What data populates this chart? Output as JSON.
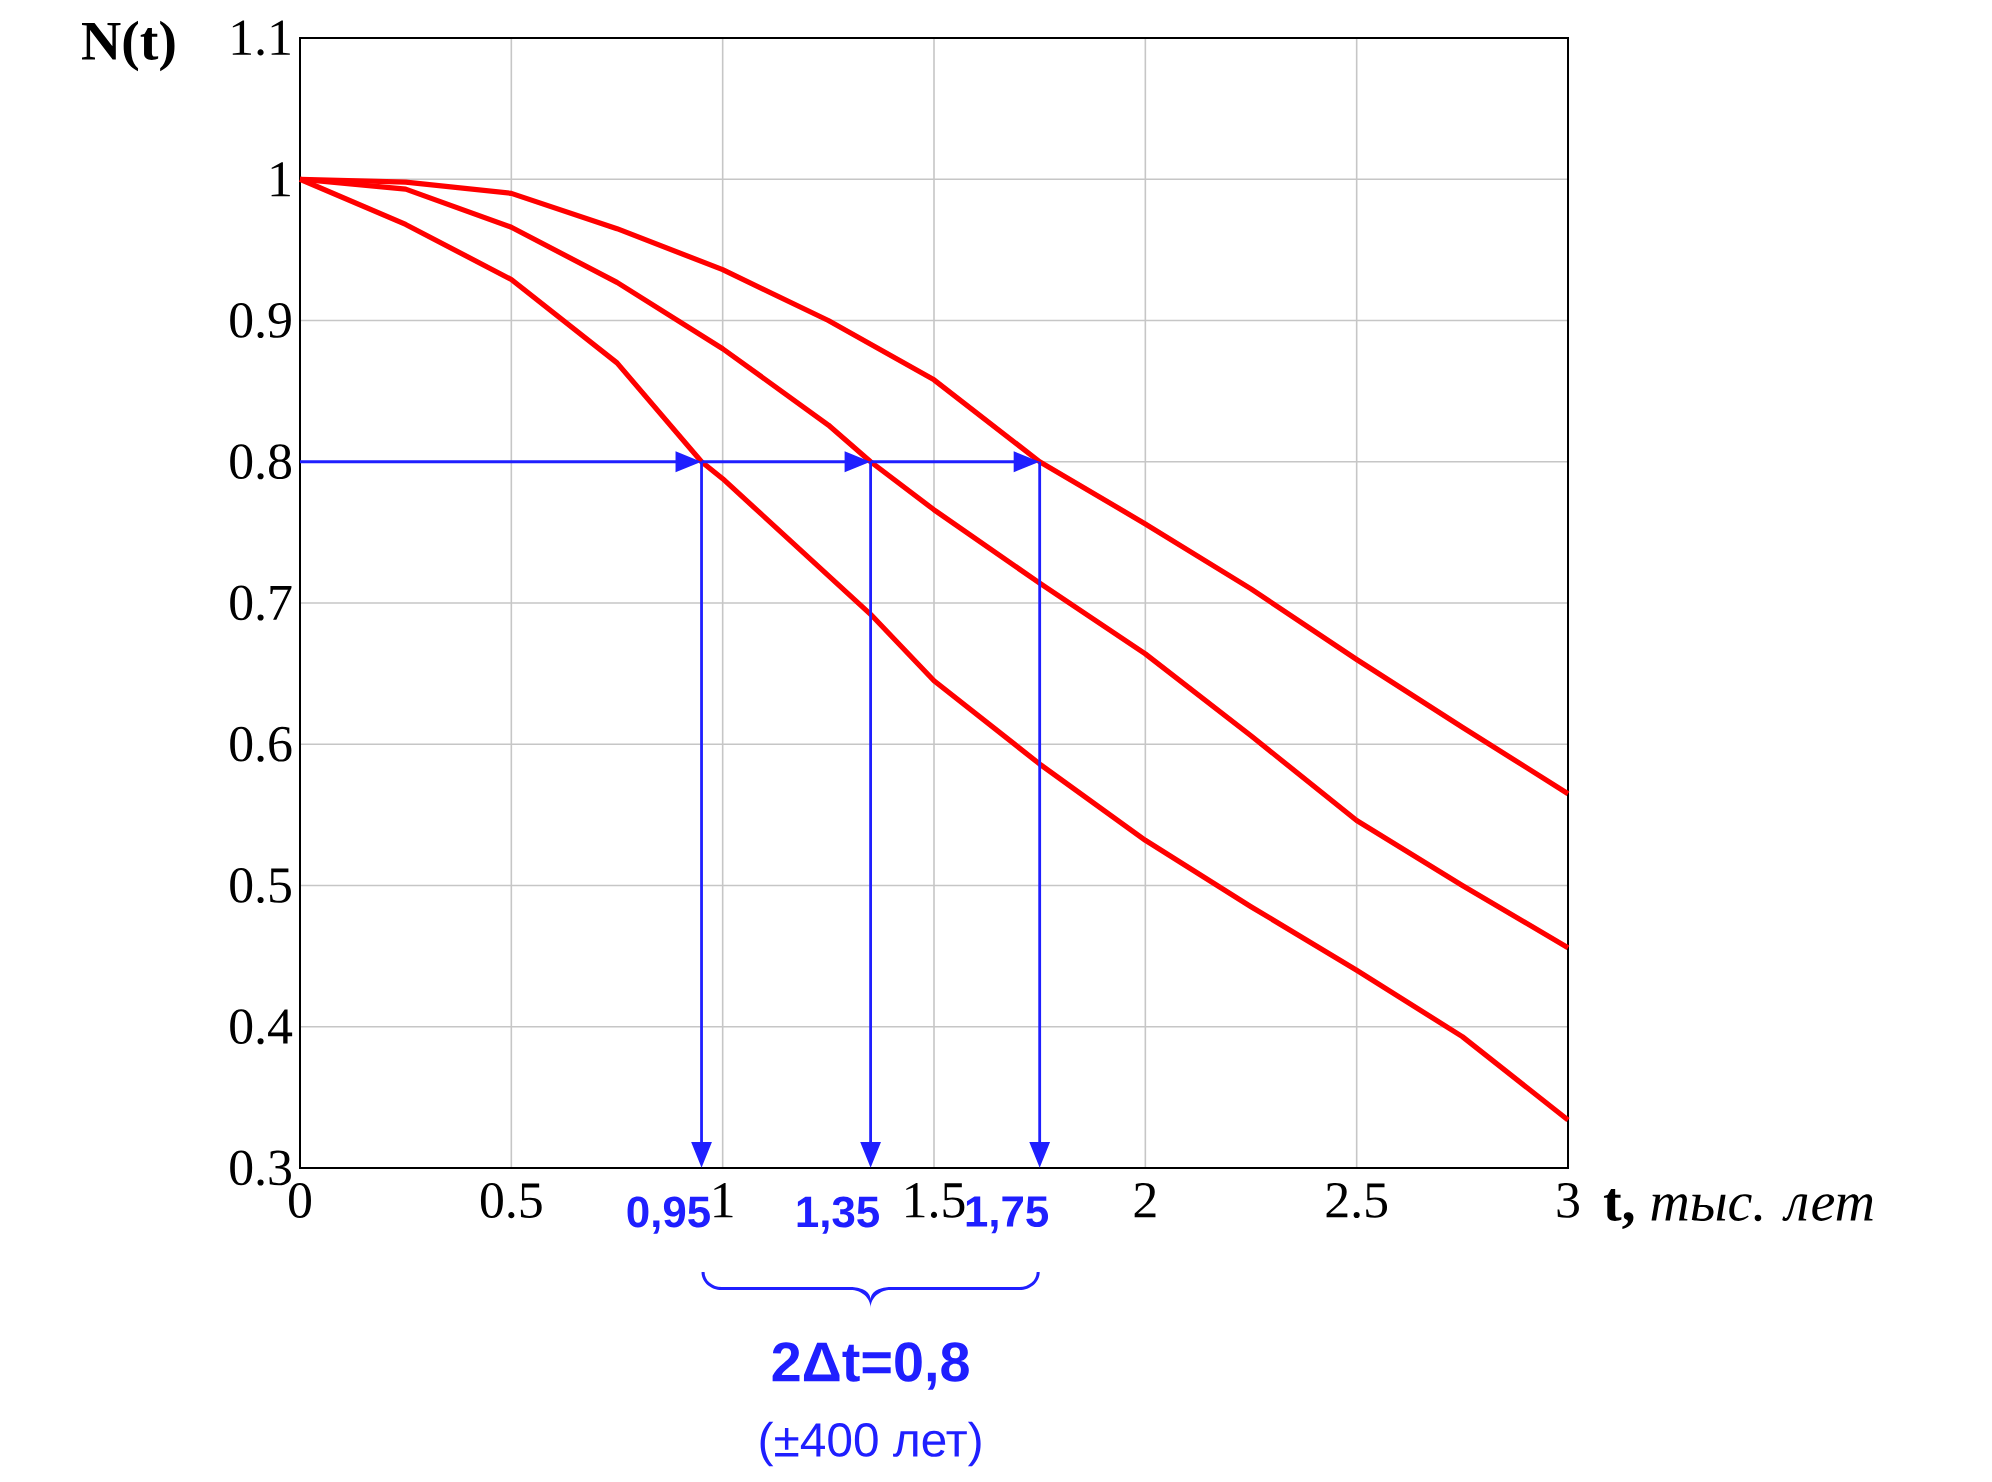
{
  "chart_data": {
    "type": "line",
    "xlabel": "**t,** *тыс. лет*",
    "ylabel": "N(t)",
    "xlim": [
      0,
      3
    ],
    "ylim": [
      0.3,
      1.1
    ],
    "xticks": [
      0,
      0.5,
      1,
      1.5,
      2,
      2.5,
      3
    ],
    "yticks": [
      0.3,
      0.4,
      0.5,
      0.6,
      0.7,
      0.8,
      0.9,
      1,
      1.1
    ],
    "grid": true,
    "marker": "none",
    "line_style": "solid",
    "series": [
      {
        "color": "#ff0000",
        "x": [
          0,
          0.25,
          0.5,
          0.75,
          1,
          1.25,
          1.5,
          1.75,
          2,
          2.25,
          2.5,
          2.75,
          3
        ],
        "values": [
          1.0,
          0.998,
          0.99,
          0.965,
          0.936,
          0.9,
          0.858,
          0.8,
          0.756,
          0.71,
          0.66,
          0.612,
          0.565
        ]
      },
      {
        "color": "#ff0000",
        "x": [
          0,
          0.25,
          0.5,
          0.75,
          1,
          1.25,
          1.35,
          1.5,
          1.75,
          2,
          2.25,
          2.5,
          2.75,
          3
        ],
        "values": [
          1.0,
          0.993,
          0.966,
          0.927,
          0.88,
          0.826,
          0.8,
          0.766,
          0.714,
          0.664,
          0.606,
          0.546,
          0.5,
          0.456
        ]
      },
      {
        "color": "#ff0000",
        "x": [
          0,
          0.25,
          0.5,
          0.75,
          0.95,
          1,
          1.35,
          1.5,
          1.75,
          2,
          2.25,
          2.5,
          2.75,
          3
        ],
        "values": [
          1.0,
          0.968,
          0.929,
          0.87,
          0.8,
          0.788,
          0.692,
          0.645,
          0.586,
          0.532,
          0.485,
          0.44,
          0.393,
          0.334
        ]
      }
    ],
    "annotations": [
      {
        "text": "0,95",
        "x": 0.95,
        "y": 0.8
      },
      {
        "text": "1,35",
        "x": 1.35,
        "y": 0.8
      },
      {
        "text": "1,75",
        "x": 1.75,
        "y": 0.8
      },
      "2Δt=0,8",
      "(±400 лет)"
    ]
  }
}
